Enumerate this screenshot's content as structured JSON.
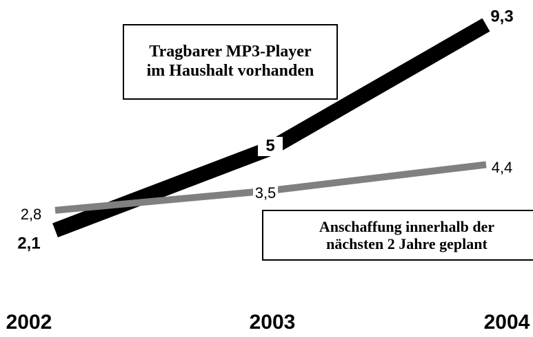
{
  "chart_data": {
    "type": "line",
    "categories": [
      "2002",
      "2003",
      "2004"
    ],
    "series": [
      {
        "name": "Tragbarer MP3-Player im Haushalt vorhanden",
        "color": "#000000",
        "values": [
          2.1,
          5,
          9.3
        ],
        "value_labels": [
          "2,1",
          "5",
          "9,3"
        ]
      },
      {
        "name": "Anschaffung innerhalb der nächsten 2 Jahre geplant",
        "color": "#808080",
        "values": [
          2.8,
          3.5,
          4.4
        ],
        "value_labels": [
          "2,8",
          "3,5",
          "4,4"
        ]
      }
    ]
  }
}
